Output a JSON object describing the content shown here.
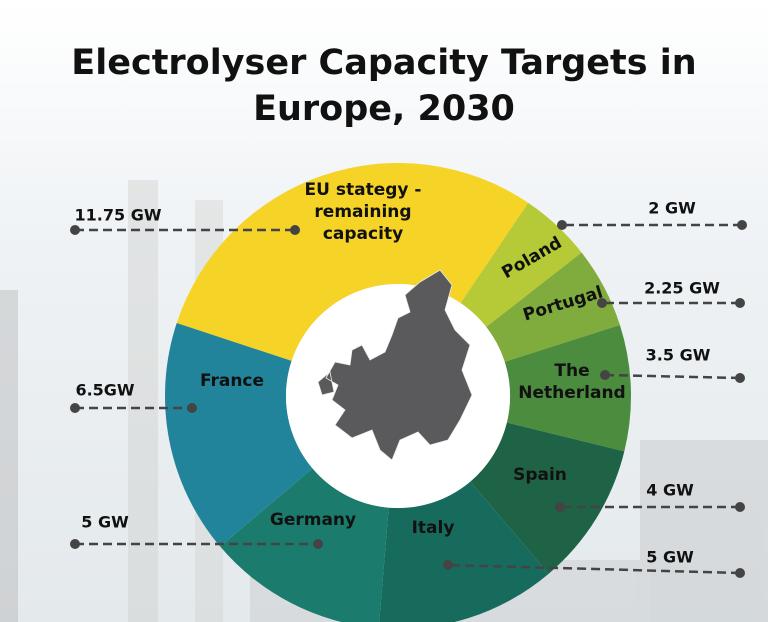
{
  "chart_data": {
    "type": "pie",
    "title": "Electrolyser Capacity Targets in Europe, 2030",
    "categories": [
      "EU stategy - remaining capacity",
      "Poland",
      "Portugal",
      "The Netherland",
      "Spain",
      "Italy",
      "Germany",
      "France"
    ],
    "values": [
      11.75,
      2,
      2.25,
      3.5,
      4,
      5,
      5,
      6.5
    ],
    "value_labels": [
      "11.75 GW",
      "2 GW",
      "2.25 GW",
      "3.5 GW",
      "4 GW",
      "5 GW",
      "5 GW",
      "6.5GW"
    ],
    "colors": [
      "#f5d327",
      "#b6c936",
      "#7fac3c",
      "#4c8c3f",
      "#1f6347",
      "#166b5c",
      "#1b7b6c",
      "#22849b"
    ]
  }
}
